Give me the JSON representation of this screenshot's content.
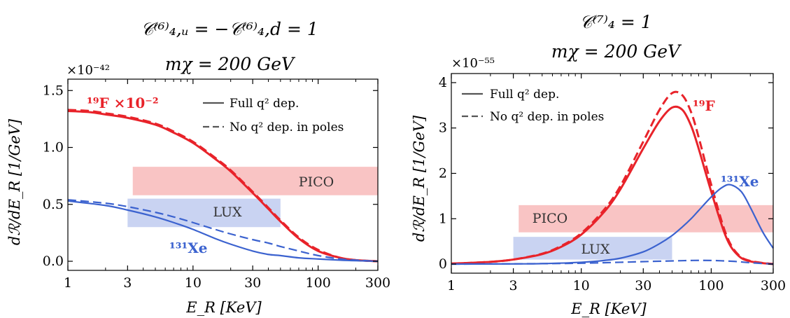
{
  "chart_data": [
    {
      "type": "line",
      "title_lines": [
        "𝒞⁽⁶⁾₄,ᵤ = −𝒞⁽⁶⁾₄,d = 1",
        "mχ = 200 GeV"
      ],
      "xlabel": "E_R [KeV]",
      "ylabel": "dℛ/dE_R [1/GeV]",
      "xscale": "log",
      "xlim": [
        1,
        300
      ],
      "ylim": [
        -0.08,
        1.6
      ],
      "x_ticks": [
        1,
        3,
        10,
        30,
        100,
        300
      ],
      "x_tick_labels": [
        "1",
        "3",
        "10",
        "30",
        "100",
        "300"
      ],
      "y_ticks": [
        0.0,
        0.5,
        1.0,
        1.5
      ],
      "y_tick_labels": [
        "0.0",
        "0.5",
        "1.0",
        "1.5"
      ],
      "multiplier": "×10⁻⁴²",
      "legend": {
        "placement": "top-right",
        "entries": [
          {
            "label": "Full q² dep.",
            "style": "solid"
          },
          {
            "label": "No q² dep. in poles",
            "style": "dashed"
          }
        ]
      },
      "bands": [
        {
          "label": "PICO",
          "x": [
            3.3,
            300
          ],
          "y": [
            0.58,
            0.83
          ],
          "color": "#f9c4c4"
        },
        {
          "label": "LUX",
          "x": [
            3,
            50
          ],
          "y": [
            0.3,
            0.55
          ],
          "color": "#c9d3f2"
        }
      ],
      "series": [
        {
          "name": "F19",
          "label": "¹⁹F ×10⁻²",
          "color": "#e8232a",
          "style": "solid",
          "x": [
            1,
            1.5,
            2,
            3,
            5,
            7,
            10,
            15,
            20,
            30,
            40,
            50,
            70,
            100,
            150,
            200,
            300
          ],
          "y": [
            1.32,
            1.31,
            1.29,
            1.26,
            1.2,
            1.13,
            1.04,
            0.9,
            0.79,
            0.6,
            0.46,
            0.35,
            0.2,
            0.09,
            0.03,
            0.01,
            0.0
          ]
        },
        {
          "name": "F19-nopole",
          "color": "#e8232a",
          "style": "dashed",
          "x": [
            1,
            1.5,
            2,
            3,
            5,
            7,
            10,
            15,
            20,
            30,
            40,
            50,
            70,
            100,
            150,
            200,
            300
          ],
          "y": [
            1.33,
            1.32,
            1.3,
            1.27,
            1.21,
            1.14,
            1.05,
            0.91,
            0.8,
            0.61,
            0.47,
            0.36,
            0.21,
            0.1,
            0.03,
            0.01,
            0.0
          ]
        },
        {
          "name": "Xe131",
          "label": "¹³¹Xe",
          "color": "#3b62cf",
          "style": "solid",
          "x": [
            1,
            2,
            3,
            5,
            7,
            10,
            15,
            20,
            30,
            40,
            50,
            70,
            100,
            150,
            200,
            300
          ],
          "y": [
            0.53,
            0.49,
            0.45,
            0.39,
            0.34,
            0.28,
            0.2,
            0.15,
            0.09,
            0.06,
            0.05,
            0.03,
            0.02,
            0.01,
            0.005,
            0.0
          ]
        },
        {
          "name": "Xe131-nopole",
          "color": "#3b62cf",
          "style": "dashed",
          "x": [
            1,
            2,
            3,
            5,
            7,
            10,
            15,
            20,
            30,
            40,
            50,
            70,
            100,
            150,
            200,
            300
          ],
          "y": [
            0.54,
            0.51,
            0.48,
            0.43,
            0.39,
            0.34,
            0.28,
            0.24,
            0.19,
            0.16,
            0.13,
            0.09,
            0.05,
            0.02,
            0.01,
            0.0
          ]
        }
      ]
    },
    {
      "type": "line",
      "title_lines": [
        "𝒞⁽⁷⁾₄ = 1",
        "mχ = 200 GeV"
      ],
      "xlabel": "E_R [KeV]",
      "ylabel": "dℛ/dE_R [1/GeV]",
      "xscale": "log",
      "xlim": [
        1,
        300
      ],
      "ylim": [
        -0.2,
        4.2
      ],
      "x_ticks": [
        1,
        3,
        10,
        30,
        100,
        300
      ],
      "x_tick_labels": [
        "1",
        "3",
        "10",
        "30",
        "100",
        "300"
      ],
      "y_ticks": [
        0,
        1,
        2,
        3,
        4
      ],
      "y_tick_labels": [
        "0",
        "1",
        "2",
        "3",
        "4"
      ],
      "multiplier": "×10⁻⁵⁵",
      "legend": {
        "placement": "top-left",
        "entries": [
          {
            "label": "Full q² dep.",
            "style": "solid"
          },
          {
            "label": "No q² dep. in poles",
            "style": "dashed"
          }
        ]
      },
      "bands": [
        {
          "label": "PICO",
          "x": [
            3.3,
            300
          ],
          "y": [
            0.7,
            1.3
          ],
          "color": "#f9c4c4"
        },
        {
          "label": "LUX",
          "x": [
            3,
            50
          ],
          "y": [
            0.1,
            0.6
          ],
          "color": "#c9d3f2"
        }
      ],
      "series": [
        {
          "name": "F19",
          "label": "¹⁹F",
          "color": "#e8232a",
          "style": "solid",
          "x": [
            1,
            2,
            3,
            5,
            7,
            10,
            15,
            20,
            30,
            40,
            50,
            60,
            70,
            80,
            100,
            130,
            160,
            200,
            300
          ],
          "y": [
            0.01,
            0.05,
            0.1,
            0.22,
            0.38,
            0.65,
            1.15,
            1.65,
            2.55,
            3.15,
            3.45,
            3.4,
            3.05,
            2.55,
            1.6,
            0.6,
            0.2,
            0.06,
            0.0
          ]
        },
        {
          "name": "F19-nopole",
          "color": "#e8232a",
          "style": "dashed",
          "x": [
            1,
            2,
            3,
            5,
            7,
            10,
            15,
            20,
            30,
            40,
            50,
            60,
            70,
            80,
            100,
            130,
            160,
            200,
            300
          ],
          "y": [
            0.01,
            0.05,
            0.1,
            0.23,
            0.4,
            0.68,
            1.2,
            1.72,
            2.7,
            3.4,
            3.77,
            3.72,
            3.35,
            2.8,
            1.75,
            0.66,
            0.22,
            0.07,
            0.0
          ]
        },
        {
          "name": "Xe131",
          "label": "¹³¹Xe",
          "color": "#3b62cf",
          "style": "solid",
          "x": [
            1,
            3,
            5,
            10,
            15,
            20,
            30,
            40,
            50,
            60,
            70,
            80,
            100,
            120,
            140,
            170,
            200,
            250,
            300
          ],
          "y": [
            0.0,
            0.005,
            0.01,
            0.04,
            0.08,
            0.13,
            0.27,
            0.45,
            0.63,
            0.82,
            1.0,
            1.18,
            1.48,
            1.68,
            1.75,
            1.6,
            1.25,
            0.7,
            0.35
          ]
        },
        {
          "name": "Xe131-nopole",
          "color": "#3b62cf",
          "style": "dashed",
          "x": [
            1,
            5,
            10,
            20,
            30,
            50,
            70,
            100,
            150,
            200,
            300
          ],
          "y": [
            0.0,
            0.01,
            0.02,
            0.04,
            0.055,
            0.07,
            0.08,
            0.08,
            0.06,
            0.03,
            0.0
          ]
        }
      ]
    }
  ]
}
